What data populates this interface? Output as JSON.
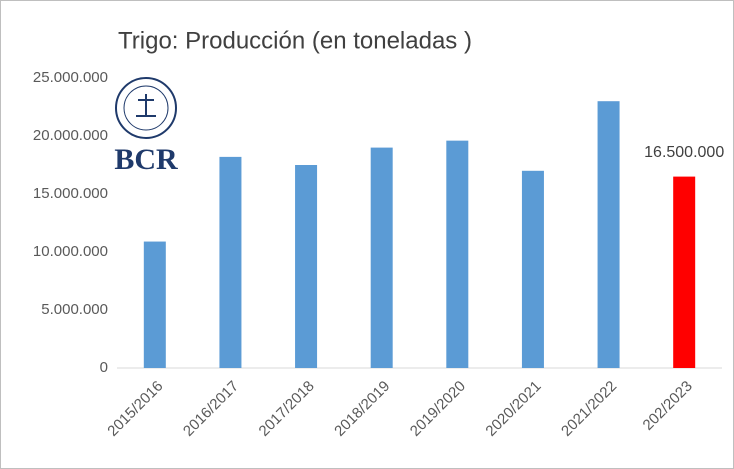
{
  "chart_data": {
    "type": "bar",
    "title": "Trigo: Producción (en toneladas )",
    "categories": [
      "2015/2016",
      "2016/2017",
      "2017/2018",
      "2018/2019",
      "2019/2020",
      "2020/2021",
      "2021/2022",
      "202/2023"
    ],
    "values": [
      10900000,
      18200000,
      17500000,
      19000000,
      19600000,
      17000000,
      23000000,
      16500000
    ],
    "value_labels": [
      null,
      null,
      null,
      null,
      null,
      null,
      null,
      "16.500.000"
    ],
    "colors": [
      "#5b9bd5",
      "#5b9bd5",
      "#5b9bd5",
      "#5b9bd5",
      "#5b9bd5",
      "#5b9bd5",
      "#5b9bd5",
      "#ff0000"
    ],
    "ylim": [
      0,
      25000000
    ],
    "yticks": [
      0,
      {
        "value": 5000000,
        "label": "5.000.000"
      },
      {
        "value": 10000000,
        "label": "10.000.000"
      },
      {
        "value": 15000000,
        "label": "15.000.000"
      },
      {
        "value": 20000000,
        "label": "20.000.000"
      },
      {
        "value": 25000000,
        "label": "25.000.000"
      }
    ],
    "grid": false
  },
  "logo": {
    "text": "BCR"
  }
}
